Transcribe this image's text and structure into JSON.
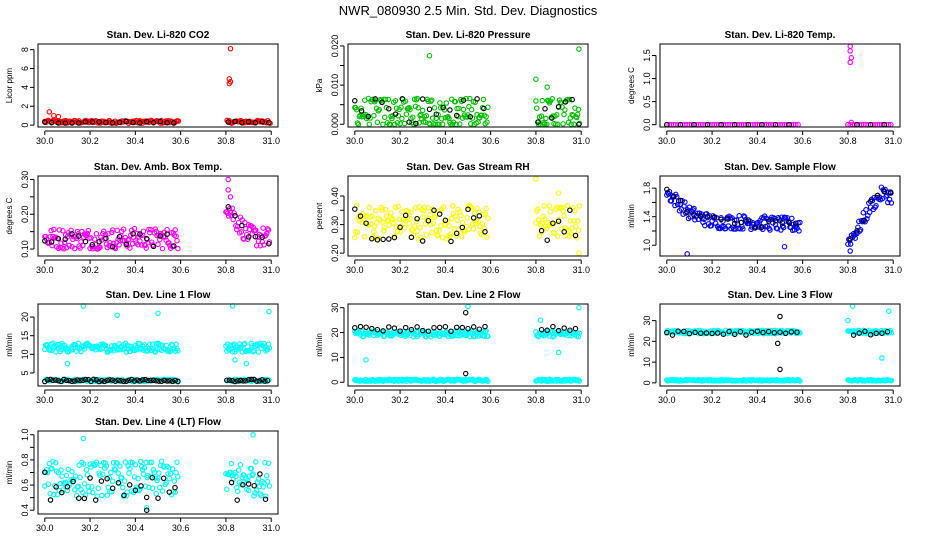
{
  "title": "NWR_080930  2.5 Min. Std. Dev. Diagnostics",
  "colors": {
    "red": "#ff0000",
    "green": "#00c000",
    "magenta": "#ff00ff",
    "yellow": "#ffff00",
    "blue": "#0000ff",
    "cyan": "#00ffff",
    "black": "#000000"
  },
  "chart_data": [
    {
      "type": "scatter",
      "title": "Stan. Dev. Li-820 CO2",
      "ylabel": "Licor ppm",
      "xlim": [
        29.97,
        31.03
      ],
      "ylim": [
        -0.2,
        8.6
      ],
      "xticks": [
        30.0,
        30.2,
        30.4,
        30.6,
        30.8,
        31.0
      ],
      "xtick_labels": [
        "30.0",
        "30.2",
        "30.4",
        "30.6",
        "30.8",
        "31.0"
      ],
      "yticks": [
        0,
        2,
        4,
        6,
        8
      ],
      "ytick_labels": [
        "0",
        "2",
        "4",
        "6",
        "8"
      ],
      "gaps": [
        [
          30.59,
          30.8
        ]
      ],
      "series": [
        {
          "name": "color",
          "color": "red",
          "base": 0.35,
          "spread": 0.15,
          "step": 0.005,
          "outliers": [
            [
              30.02,
              1.4
            ],
            [
              30.04,
              1.0
            ],
            [
              30.06,
              0.9
            ],
            [
              30.82,
              8.1
            ],
            [
              30.815,
              4.9
            ],
            [
              30.82,
              4.6
            ],
            [
              30.815,
              4.4
            ]
          ]
        },
        {
          "name": "black",
          "color": "black",
          "base": 0.3,
          "spread": 0.1,
          "step": 0.03,
          "outliers": []
        }
      ]
    },
    {
      "type": "scatter",
      "title": "Stan. Dev. Li-820 Pressure",
      "ylabel": "kPa",
      "xlim": [
        29.97,
        31.03
      ],
      "ylim": [
        -0.0007,
        0.0205
      ],
      "xticks": [
        30.0,
        30.2,
        30.4,
        30.6,
        30.8,
        31.0
      ],
      "xtick_labels": [
        "30.0",
        "30.2",
        "30.4",
        "30.6",
        "30.8",
        "31.0"
      ],
      "yticks": [
        0.0,
        0.005,
        0.01,
        0.015,
        0.02
      ],
      "ytick_labels": [
        "0.000",
        "",
        "0.010",
        "",
        "0.020"
      ],
      "gaps": [
        [
          30.59,
          30.8
        ]
      ],
      "series": [
        {
          "name": "color",
          "color": "green",
          "levels": [
            0.0,
            0.002,
            0.004,
            0.006
          ],
          "step": 0.004,
          "outliers": [
            [
              30.33,
              0.0175
            ],
            [
              30.8,
              0.0115
            ],
            [
              30.99,
              0.0192
            ],
            [
              30.85,
              0.0095
            ]
          ]
        },
        {
          "name": "black",
          "color": "black",
          "levels": [
            0.0,
            0.002,
            0.004,
            0.006
          ],
          "step": 0.03,
          "outliers": []
        }
      ]
    },
    {
      "type": "scatter",
      "title": "Stan. Dev. Li-820 Temp.",
      "ylabel": "degrees C",
      "xlim": [
        29.97,
        31.03
      ],
      "ylim": [
        -0.05,
        1.75
      ],
      "xticks": [
        30.0,
        30.2,
        30.4,
        30.6,
        30.8,
        31.0
      ],
      "xtick_labels": [
        "30.0",
        "30.2",
        "30.4",
        "30.6",
        "30.8",
        "31.0"
      ],
      "yticks": [
        0.0,
        0.5,
        1.0,
        1.5
      ],
      "ytick_labels": [
        "0.0",
        "0.5",
        "1.0",
        "1.5"
      ],
      "gaps": [
        [
          30.59,
          30.8
        ]
      ],
      "series": [
        {
          "name": "color",
          "color": "magenta",
          "base": 0.0,
          "spread": 0.0,
          "step": 0.01,
          "outliers": [
            [
              30.81,
              1.7
            ],
            [
              30.81,
              1.6
            ],
            [
              30.815,
              1.45
            ],
            [
              30.81,
              1.35
            ],
            [
              30.815,
              0.05
            ]
          ]
        },
        {
          "name": "black",
          "color": "black",
          "base": 0.0,
          "spread": 0.0,
          "step": 0.06,
          "outliers": []
        }
      ]
    },
    {
      "type": "scatter",
      "title": "Stan. Dev. Amb. Box Temp.",
      "ylabel": "degrees C",
      "xlim": [
        29.97,
        31.03
      ],
      "ylim": [
        0.08,
        0.31
      ],
      "xticks": [
        30.0,
        30.2,
        30.4,
        30.6,
        30.8,
        31.0
      ],
      "xtick_labels": [
        "30.0",
        "30.2",
        "30.4",
        "30.6",
        "30.8",
        "31.0"
      ],
      "yticks": [
        0.1,
        0.15,
        0.2,
        0.25,
        0.3
      ],
      "ytick_labels": [
        "0.10",
        "",
        "0.20",
        "",
        "0.30"
      ],
      "gaps": [
        [
          30.59,
          30.8
        ]
      ],
      "trend_after_gap": [
        [
          30.8,
          0.23
        ],
        [
          30.85,
          0.18
        ],
        [
          30.9,
          0.14
        ],
        [
          31.0,
          0.13
        ]
      ],
      "series": [
        {
          "name": "color",
          "color": "magenta",
          "base": 0.13,
          "spread": 0.03,
          "step": 0.004,
          "outliers": [
            [
              30.81,
              0.3
            ],
            [
              30.81,
              0.27
            ],
            [
              30.82,
              0.25
            ]
          ]
        },
        {
          "name": "black",
          "color": "black",
          "base": 0.125,
          "spread": 0.02,
          "step": 0.03,
          "outliers": []
        }
      ]
    },
    {
      "type": "scatter",
      "title": "Stan. Dev. Gas Stream RH",
      "ylabel": "percent",
      "xlim": [
        29.97,
        31.03
      ],
      "ylim": [
        0.19,
        0.47
      ],
      "xticks": [
        30.0,
        30.2,
        30.4,
        30.6,
        30.8,
        31.0
      ],
      "xtick_labels": [
        "30.0",
        "30.2",
        "30.4",
        "30.6",
        "30.8",
        "31.0"
      ],
      "yticks": [
        0.2,
        0.25,
        0.3,
        0.35,
        0.4
      ],
      "ytick_labels": [
        "0.20",
        "",
        "0.30",
        "",
        "0.40"
      ],
      "gaps": [
        [
          30.59,
          30.8
        ]
      ],
      "series": [
        {
          "name": "color",
          "color": "yellow",
          "base": 0.31,
          "spread": 0.06,
          "step": 0.004,
          "outliers": [
            [
              30.8,
              0.46
            ],
            [
              30.9,
              0.41
            ],
            [
              30.99,
              0.2
            ]
          ]
        },
        {
          "name": "black",
          "color": "black",
          "base": 0.3,
          "spread": 0.06,
          "step": 0.025,
          "outliers": []
        }
      ]
    },
    {
      "type": "scatter",
      "title": "Stan. Dev. Sample Flow",
      "ylabel": "ml/min",
      "xlim": [
        29.97,
        31.03
      ],
      "ylim": [
        0.85,
        1.97
      ],
      "xticks": [
        30.0,
        30.2,
        30.4,
        30.6,
        30.8,
        31.0
      ],
      "xtick_labels": [
        "30.0",
        "30.2",
        "30.4",
        "30.6",
        "30.8",
        "31.0"
      ],
      "yticks": [
        1.0,
        1.2,
        1.4,
        1.6,
        1.8
      ],
      "ytick_labels": [
        "1.0",
        "",
        "1.4",
        "",
        "1.8"
      ],
      "gaps": [
        [
          30.59,
          30.8
        ]
      ],
      "trend": [
        [
          30.0,
          1.75
        ],
        [
          30.1,
          1.45
        ],
        [
          30.2,
          1.33
        ],
        [
          30.4,
          1.32
        ],
        [
          30.58,
          1.28
        ]
      ],
      "trend_after_gap": [
        [
          30.8,
          1.05
        ],
        [
          30.85,
          1.25
        ],
        [
          30.9,
          1.55
        ],
        [
          30.95,
          1.72
        ],
        [
          31.0,
          1.68
        ]
      ],
      "series": [
        {
          "name": "color",
          "color": "blue",
          "base": 1.3,
          "spread": 0.1,
          "step": 0.004,
          "outliers": [
            [
              30.09,
              0.88
            ],
            [
              30.81,
              0.92
            ],
            [
              30.52,
              0.98
            ]
          ]
        },
        {
          "name": "black",
          "color": "black",
          "base": 1.3,
          "spread": 0.08,
          "step": 0.03,
          "outliers": []
        }
      ]
    },
    {
      "type": "scatter",
      "title": "Stan. Dev. Line 1 Flow",
      "ylabel": "ml/min",
      "xlim": [
        29.97,
        31.03
      ],
      "ylim": [
        1.5,
        23.5
      ],
      "xticks": [
        30.0,
        30.2,
        30.4,
        30.6,
        30.8,
        31.0
      ],
      "xtick_labels": [
        "30.0",
        "30.2",
        "30.4",
        "30.6",
        "30.8",
        "31.0"
      ],
      "yticks": [
        5,
        10,
        15,
        20
      ],
      "ytick_labels": [
        "5",
        "10",
        "15",
        "20"
      ],
      "gaps": [
        [
          30.59,
          30.8
        ]
      ],
      "series": [
        {
          "name": "color",
          "color": "cyan",
          "base": 11.8,
          "spread": 1.2,
          "step": 0.004,
          "outliers": [
            [
              30.17,
              23.0
            ],
            [
              30.32,
              20.5
            ],
            [
              30.5,
              21.0
            ],
            [
              30.83,
              23.0
            ],
            [
              30.99,
              21.5
            ],
            [
              30.84,
              8.5
            ],
            [
              30.89,
              7.5
            ],
            [
              30.1,
              7.5
            ]
          ]
        },
        {
          "name": "black",
          "color": "black",
          "base": 3.0,
          "spread": 0.3,
          "step": 0.012,
          "outliers": []
        },
        {
          "name": "cyan-low",
          "color": "cyan",
          "base": 3.0,
          "spread": 0.3,
          "step": 0.006,
          "outliers": []
        }
      ]
    },
    {
      "type": "scatter",
      "title": "Stan. Dev. Line 2 Flow",
      "ylabel": "ml/min",
      "xlim": [
        29.97,
        31.03
      ],
      "ylim": [
        -1.5,
        31.5
      ],
      "xticks": [
        30.0,
        30.2,
        30.4,
        30.6,
        30.8,
        31.0
      ],
      "xtick_labels": [
        "30.0",
        "30.2",
        "30.4",
        "30.6",
        "30.8",
        "31.0"
      ],
      "yticks": [
        0,
        10,
        20,
        30
      ],
      "ytick_labels": [
        "0",
        "10",
        "20",
        "30"
      ],
      "gaps": [
        [
          30.59,
          30.8
        ]
      ],
      "series": [
        {
          "name": "color",
          "color": "cyan",
          "base": 19.5,
          "spread": 1.2,
          "step": 0.004,
          "outliers": [
            [
              30.05,
              9.0
            ],
            [
              30.5,
              30.5
            ],
            [
              30.82,
              25.0
            ],
            [
              30.9,
              12.0
            ],
            [
              30.99,
              30.0
            ]
          ]
        },
        {
          "name": "black",
          "color": "black",
          "base": 21.5,
          "spread": 1.0,
          "step": 0.025,
          "outliers": [
            [
              30.49,
              28.0
            ],
            [
              30.49,
              3.5
            ]
          ]
        },
        {
          "name": "cyan-low",
          "color": "cyan",
          "base": 0.8,
          "spread": 0.4,
          "step": 0.004,
          "outliers": []
        }
      ]
    },
    {
      "type": "scatter",
      "title": "Stan. Dev. Line 3 Flow",
      "ylabel": "ml/min",
      "xlim": [
        29.97,
        31.03
      ],
      "ylim": [
        -1.5,
        38.0
      ],
      "xticks": [
        30.0,
        30.2,
        30.4,
        30.6,
        30.8,
        31.0
      ],
      "xtick_labels": [
        "30.0",
        "30.2",
        "30.4",
        "30.6",
        "30.8",
        "31.0"
      ],
      "yticks": [
        0,
        10,
        20,
        30
      ],
      "ytick_labels": [
        "0",
        "10",
        "20",
        "30"
      ],
      "gaps": [
        [
          30.59,
          30.8
        ]
      ],
      "series": [
        {
          "name": "color",
          "color": "cyan",
          "base": 24.5,
          "spread": 0.8,
          "step": 0.004,
          "outliers": [
            [
              30.8,
              30.0
            ],
            [
              30.82,
              37.0
            ],
            [
              30.98,
              34.5
            ],
            [
              30.95,
              12.0
            ]
          ]
        },
        {
          "name": "black",
          "color": "black",
          "base": 24.0,
          "spread": 1.0,
          "step": 0.025,
          "outliers": [
            [
              30.5,
              32.0
            ],
            [
              30.49,
              19.0
            ],
            [
              30.5,
              6.5
            ]
          ]
        },
        {
          "name": "cyan-low",
          "color": "cyan",
          "base": 1.2,
          "spread": 0.3,
          "step": 0.004,
          "outliers": []
        }
      ]
    },
    {
      "type": "scatter",
      "title": "Stan. Dev. Line 4 (LT) Flow",
      "ylabel": "ml/min",
      "xlim": [
        29.97,
        31.03
      ],
      "ylim": [
        0.37,
        1.03
      ],
      "xticks": [
        30.0,
        30.2,
        30.4,
        30.6,
        30.8,
        31.0
      ],
      "xtick_labels": [
        "30.0",
        "30.2",
        "30.4",
        "30.6",
        "30.8",
        "31.0"
      ],
      "yticks": [
        0.4,
        0.5,
        0.6,
        0.7,
        0.8,
        0.9,
        1.0
      ],
      "ytick_labels": [
        "0.4",
        "",
        "0.6",
        "",
        "0.8",
        "",
        "1.0"
      ],
      "gaps": [
        [
          30.59,
          30.8
        ]
      ],
      "series": [
        {
          "name": "color",
          "color": "cyan",
          "base": 0.65,
          "spread": 0.14,
          "step": 0.004,
          "outliers": [
            [
              30.92,
              1.0
            ],
            [
              30.17,
              0.97
            ],
            [
              30.45,
              0.42
            ]
          ]
        },
        {
          "name": "black",
          "color": "black",
          "base": 0.6,
          "spread": 0.12,
          "step": 0.025,
          "outliers": [
            [
              30.45,
              0.4
            ]
          ]
        }
      ]
    }
  ]
}
